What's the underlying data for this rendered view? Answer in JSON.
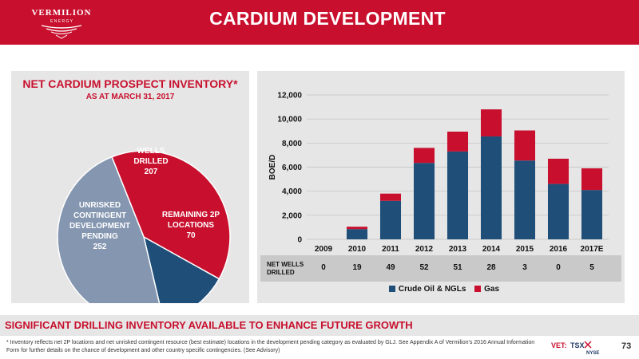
{
  "brand": {
    "name_line1": "VERMILION",
    "name_line2": "E N E R G Y"
  },
  "header": {
    "title": "CARDIUM DEVELOPMENT"
  },
  "pie": {
    "title": "NET CARDIUM PROSPECT INVENTORY*",
    "subtitle": "AS AT MARCH 31, 2017",
    "slices": [
      {
        "name": "WELLS DRILLED",
        "label_line1": "WELLS",
        "label_line2": "DRILLED",
        "value": 207,
        "value_text": "207",
        "color": "#c8102e"
      },
      {
        "name": "REMAINING 2P LOCATIONS",
        "label_line1": "REMAINING 2P",
        "label_line2": "LOCATIONS",
        "value": 70,
        "value_text": "70",
        "color": "#1f4e79"
      },
      {
        "name": "UNRISKED CONTINGENT DEVELOPMENT PENDING",
        "label_line1": "UNRISKED",
        "label_line2": "CONTINGENT",
        "label_line3": "DEVELOPMENT",
        "label_line4": "PENDING",
        "value": 252,
        "value_text": "252",
        "color": "#8496b0"
      }
    ]
  },
  "chart_data": {
    "type": "bar",
    "stacked": true,
    "categories": [
      "2009",
      "2010",
      "2011",
      "2012",
      "2013",
      "2014",
      "2015",
      "2016",
      "2017E"
    ],
    "series": [
      {
        "name": "Crude Oil & NGLs",
        "color": "#1f4e79",
        "values": [
          0,
          850,
          3200,
          6350,
          7300,
          8550,
          6550,
          4600,
          4100
        ]
      },
      {
        "name": "Gas",
        "color": "#c8102e",
        "values": [
          0,
          200,
          600,
          1250,
          1650,
          2250,
          2500,
          2100,
          1800
        ]
      }
    ],
    "ylabel": "BOE/D",
    "ylim": [
      0,
      12000
    ],
    "yticks": [
      "0",
      "2,000",
      "4,000",
      "6,000",
      "8,000",
      "10,000",
      "12,000"
    ],
    "grid": true,
    "legend": "bottom"
  },
  "wells": {
    "label_line1": "NET WELLS",
    "label_line2": "DRILLED",
    "values": [
      "0",
      "19",
      "49",
      "52",
      "51",
      "28",
      "3",
      "0",
      "5"
    ]
  },
  "banner": {
    "text": "SIGNIFICANT DRILLING INVENTORY AVAILABLE TO ENHANCE FUTURE GROWTH"
  },
  "footnote": {
    "text": "* Inventory reflects net 2P locations and net unrisked contingent resource (best estimate) locations in the development pending category as evaluated by GLJ. See Appendix A of Vermilion's 2016 Annual Information Form for further details on the chance of development and other country specific contingencies. (See Advisory)"
  },
  "ticker": {
    "prefix": "VET:",
    "tsx": "TSX",
    "nyse": "NYSE"
  },
  "page_number": "73"
}
